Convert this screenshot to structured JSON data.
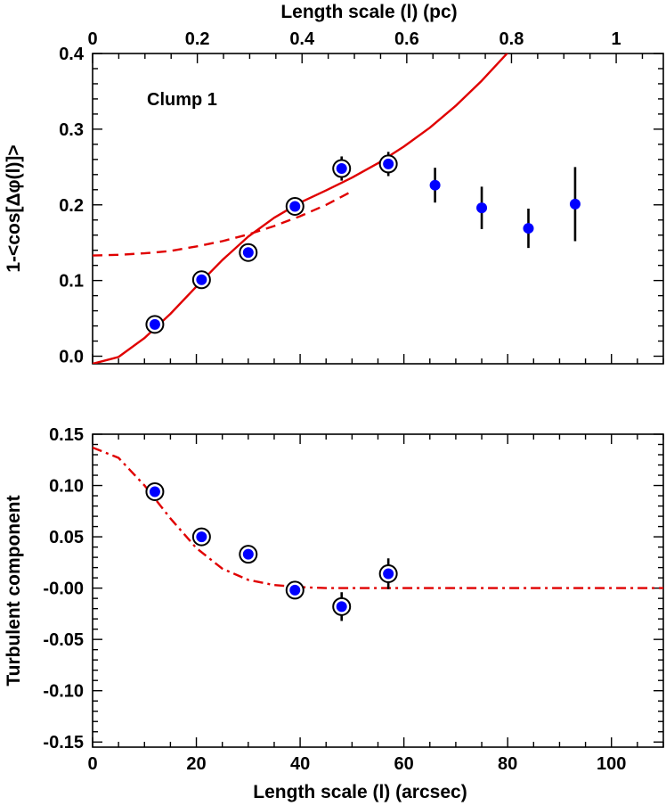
{
  "chart_data": [
    {
      "type": "scatter",
      "panel": "top",
      "xlabel_top": "Length scale (l) (pc)",
      "ylabel": "1-<cos[Δφ(l)]>",
      "annotation": "Clump 1",
      "xlim": [
        0,
        110
      ],
      "ylim": [
        -0.01,
        0.4
      ],
      "xtick_labels": [
        "0",
        "20",
        "40",
        "60",
        "80",
        "100"
      ],
      "ytick_labels": [
        "0.0",
        "0.1",
        "0.2",
        "0.3",
        "0.4"
      ],
      "top_xlim": [
        0,
        1.09
      ],
      "top_xtick_labels": [
        "0",
        "0.2",
        "0.4",
        "0.6",
        "0.8",
        "1"
      ],
      "series": [
        {
          "name": "data",
          "x": [
            12,
            21,
            30,
            39,
            48,
            57,
            66,
            75,
            84,
            93
          ],
          "y": [
            0.042,
            0.101,
            0.137,
            0.198,
            0.248,
            0.254,
            0.226,
            0.196,
            0.169,
            0.201
          ],
          "err": [
            0.006,
            0.006,
            0.008,
            0.008,
            0.016,
            0.016,
            0.023,
            0.028,
            0.026,
            0.049
          ],
          "circled": [
            true,
            true,
            true,
            true,
            true,
            true,
            false,
            false,
            false,
            false
          ],
          "color": "#0000ff"
        },
        {
          "name": "fit (solid)",
          "style": "solid",
          "color": "#e00000",
          "x": [
            0,
            5,
            10,
            15,
            20,
            25,
            30,
            35,
            40,
            45,
            50,
            55,
            60,
            65,
            70,
            75,
            80
          ],
          "y": [
            -0.01,
            -0.001,
            0.024,
            0.056,
            0.092,
            0.127,
            0.158,
            0.183,
            0.203,
            0.219,
            0.236,
            0.255,
            0.277,
            0.302,
            0.331,
            0.364,
            0.401
          ]
        },
        {
          "name": "fit (dashed)",
          "style": "dashed",
          "color": "#e00000",
          "x": [
            0,
            5,
            10,
            15,
            20,
            25,
            30,
            35,
            40,
            45,
            50
          ],
          "y": [
            0.133,
            0.134,
            0.136,
            0.139,
            0.145,
            0.152,
            0.161,
            0.172,
            0.185,
            0.2,
            0.218
          ]
        }
      ]
    },
    {
      "type": "scatter",
      "panel": "bottom",
      "xlabel": "Length scale (l) (arcsec)",
      "ylabel": "Turbulent component",
      "xlim": [
        0,
        110
      ],
      "ylim": [
        -0.155,
        0.15
      ],
      "xtick_labels": [
        "0",
        "20",
        "40",
        "60",
        "80",
        "100"
      ],
      "ytick_labels": [
        "0.15",
        "0.10",
        "0.05",
        "-0.00",
        "-0.05",
        "-0.10",
        "-0.15"
      ],
      "series": [
        {
          "name": "data",
          "x": [
            12,
            21,
            30,
            39,
            48,
            57
          ],
          "y": [
            0.094,
            0.05,
            0.033,
            -0.002,
            -0.018,
            0.014
          ],
          "err": [
            0.005,
            0.006,
            0.006,
            0.008,
            0.014,
            0.015
          ],
          "circled": [
            true,
            true,
            true,
            true,
            true,
            true
          ],
          "color": "#0000ff"
        },
        {
          "name": "turbulent fit (dash-dot)",
          "style": "dashdot",
          "color": "#e00000",
          "x": [
            0,
            5,
            10,
            15,
            20,
            25,
            30,
            35,
            40,
            45,
            50,
            55,
            60,
            70,
            80,
            90,
            100,
            110
          ],
          "y": [
            0.137,
            0.127,
            0.1,
            0.068,
            0.039,
            0.019,
            0.008,
            0.003,
            0.001,
            0.0,
            0.0,
            0.0,
            0.0,
            0.0,
            0.0,
            0.0,
            0.0,
            0.0
          ]
        }
      ]
    }
  ]
}
